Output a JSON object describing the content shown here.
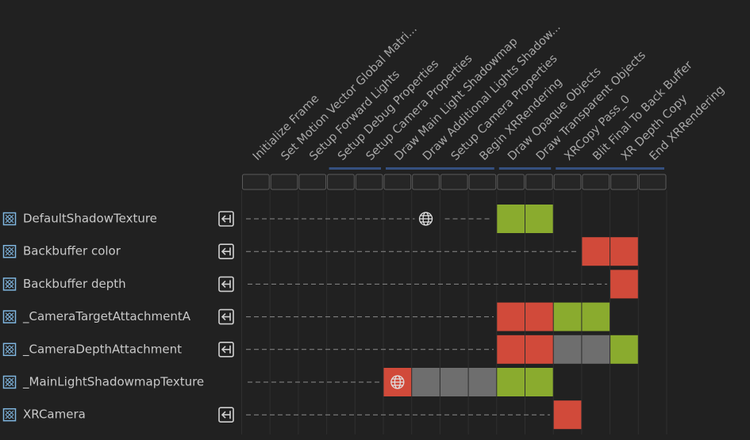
{
  "passes": [
    "Initialize Frame",
    "Set Motion Vector Global Matri...",
    "Setup Forward Lights",
    "Setup Debug Properties",
    "Setup Camera Properties",
    "Draw Main Light Shadowmap",
    "Draw Additional Lights Shadow...",
    "Setup Camera Properties",
    "Begin XRRendering",
    "Draw Opaque Objects",
    "Draw Transparent Objects",
    "XRCopy Pass_0",
    "Blit Final To Back Buffer",
    "XR Depth Copy",
    "End XRRendering"
  ],
  "resources": [
    "DefaultShadowTexture",
    "Backbuffer color",
    "Backbuffer depth",
    "_CameraTargetAttachmentA",
    "_CameraDepthAttachment",
    "_MainLightShadowmapTexture",
    "XRCamera"
  ]
}
